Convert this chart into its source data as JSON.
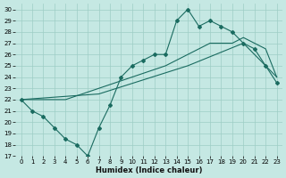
{
  "background_color": "#c5e8e3",
  "grid_color": "#9ecdc5",
  "line_color": "#1a6b60",
  "xlabel": "Humidex (Indice chaleur)",
  "xlim": [
    -0.5,
    23.5
  ],
  "ylim": [
    17,
    30.5
  ],
  "xticks": [
    0,
    1,
    2,
    3,
    4,
    5,
    6,
    7,
    8,
    9,
    10,
    11,
    12,
    13,
    14,
    15,
    16,
    17,
    18,
    19,
    20,
    21,
    22,
    23
  ],
  "yticks": [
    17,
    18,
    19,
    20,
    21,
    22,
    23,
    24,
    25,
    26,
    27,
    28,
    29,
    30
  ],
  "line1_x": [
    0,
    1,
    2,
    3,
    4,
    5,
    6,
    7,
    8,
    9,
    10,
    11,
    12,
    13,
    14,
    15,
    16,
    17,
    18,
    19,
    20,
    21,
    22,
    23
  ],
  "line1_y": [
    22,
    21,
    20.5,
    19.5,
    18.5,
    18,
    17,
    19.5,
    21.5,
    24,
    25,
    25.5,
    26,
    26,
    29,
    30,
    28.5,
    29,
    28.5,
    28,
    27,
    26.5,
    25,
    23.5
  ],
  "line2_x": [
    0,
    2,
    4,
    7,
    10,
    13,
    15,
    17,
    19,
    20,
    22,
    23
  ],
  "line2_y": [
    22,
    22,
    22,
    23,
    24,
    25,
    26,
    27,
    27,
    27.5,
    26.5,
    24
  ],
  "line3_x": [
    0,
    7,
    15,
    20,
    23
  ],
  "line3_y": [
    22,
    22.5,
    25,
    27,
    24
  ]
}
